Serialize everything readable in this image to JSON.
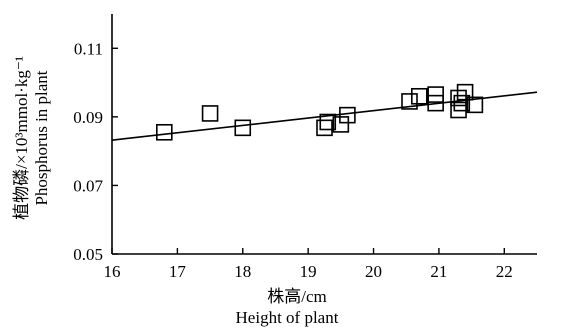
{
  "chart_data": {
    "type": "scatter",
    "xlabel_zh": "株高/cm",
    "xlabel_en": "Height of plant",
    "ylabel_zh": "植物磷/×10³mmol·kg⁻¹",
    "ylabel_en": "Phosphorus in plant",
    "xlim": [
      16,
      22.5
    ],
    "ylim": [
      0.05,
      0.12
    ],
    "x_ticks": [
      16,
      17,
      18,
      19,
      20,
      21,
      22
    ],
    "y_ticks": [
      0.05,
      0.07,
      0.09,
      0.11
    ],
    "x_tick_labels": [
      "16",
      "17",
      "18",
      "19",
      "20",
      "21",
      "22"
    ],
    "y_tick_labels": [
      "0.05",
      "0.07",
      "0.09",
      "0.11"
    ],
    "grid": false,
    "marker": "hollow square",
    "series": [
      {
        "points": [
          {
            "x": 16.8,
            "y": 0.0855
          },
          {
            "x": 17.5,
            "y": 0.091
          },
          {
            "x": 18.0,
            "y": 0.0868
          },
          {
            "x": 19.25,
            "y": 0.0868
          },
          {
            "x": 19.3,
            "y": 0.0885
          },
          {
            "x": 19.5,
            "y": 0.0878
          },
          {
            "x": 19.6,
            "y": 0.0905
          },
          {
            "x": 20.55,
            "y": 0.0945
          },
          {
            "x": 20.7,
            "y": 0.096
          },
          {
            "x": 20.95,
            "y": 0.0965
          },
          {
            "x": 20.95,
            "y": 0.094
          },
          {
            "x": 21.3,
            "y": 0.092
          },
          {
            "x": 21.3,
            "y": 0.0955
          },
          {
            "x": 21.35,
            "y": 0.094
          },
          {
            "x": 21.4,
            "y": 0.0972
          },
          {
            "x": 21.55,
            "y": 0.0935
          }
        ]
      }
    ],
    "fit_line": {
      "x": [
        16,
        22.5
      ],
      "y": [
        0.0832,
        0.0972
      ]
    }
  }
}
